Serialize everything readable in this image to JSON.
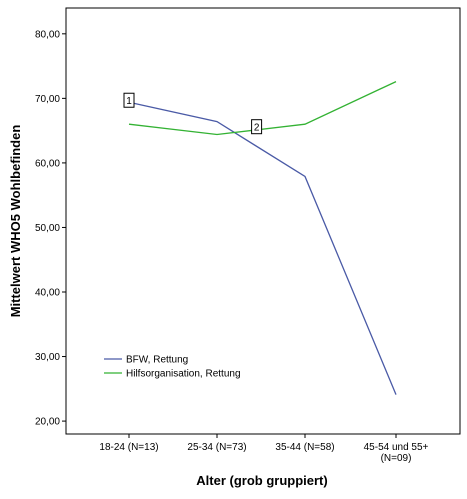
{
  "chart_data": {
    "type": "line",
    "xlabel": "Alter (grob gruppiert)",
    "ylabel": "Mittelwert WHO5 Wohlbefinden",
    "categories": [
      [
        "18-24 (N=13)"
      ],
      [
        "25-34 (N=73)"
      ],
      [
        "35-44 (N=58)"
      ],
      [
        "45-54 und 55+",
        "(N=09)"
      ]
    ],
    "yticks": [
      "20,00",
      "30,00",
      "40,00",
      "50,00",
      "60,00",
      "70,00",
      "80,00"
    ],
    "ylim": [
      18,
      84
    ],
    "grid": false,
    "legend_position": "bottom-left",
    "series": [
      {
        "name": "BFW, Rettung",
        "color": "#4a5aa6",
        "values": [
          69.4,
          66.4,
          57.9,
          24.1
        ]
      },
      {
        "name": "Hilfsorganisation, Rettung",
        "color": "#33b233",
        "values": [
          66.0,
          64.4,
          66.0,
          72.6
        ]
      }
    ],
    "markers": [
      {
        "label": "1",
        "x": 0,
        "y": 69.4
      },
      {
        "label": "2",
        "x": 1.45,
        "y": 65.3
      }
    ]
  }
}
